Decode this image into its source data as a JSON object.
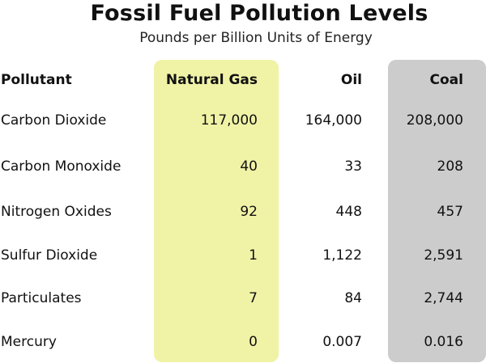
{
  "chart_data": {
    "type": "table",
    "title": "Fossil Fuel Pollution Levels",
    "subtitle": "Pounds per Billion Units of Energy",
    "columns": [
      "Pollutant",
      "Natural Gas",
      "Oil",
      "Coal"
    ],
    "rows": [
      {
        "pollutant": "Carbon Dioxide",
        "natural_gas": "117,000",
        "oil": "164,000",
        "coal": "208,000"
      },
      {
        "pollutant": "Carbon Monoxide",
        "natural_gas": "40",
        "oil": "33",
        "coal": "208"
      },
      {
        "pollutant": "Nitrogen Oxides",
        "natural_gas": "92",
        "oil": "448",
        "coal": "457"
      },
      {
        "pollutant": "Sulfur Dioxide",
        "natural_gas": "1",
        "oil": "1,122",
        "coal": "2,591"
      },
      {
        "pollutant": "Particulates",
        "natural_gas": "7",
        "oil": "84",
        "coal": "2,744"
      },
      {
        "pollutant": "Mercury",
        "natural_gas": "0",
        "oil": "0.007",
        "coal": "0.016"
      }
    ],
    "highlight_colors": {
      "Natural Gas": "#f0f3a6",
      "Coal": "#cccccc"
    }
  }
}
